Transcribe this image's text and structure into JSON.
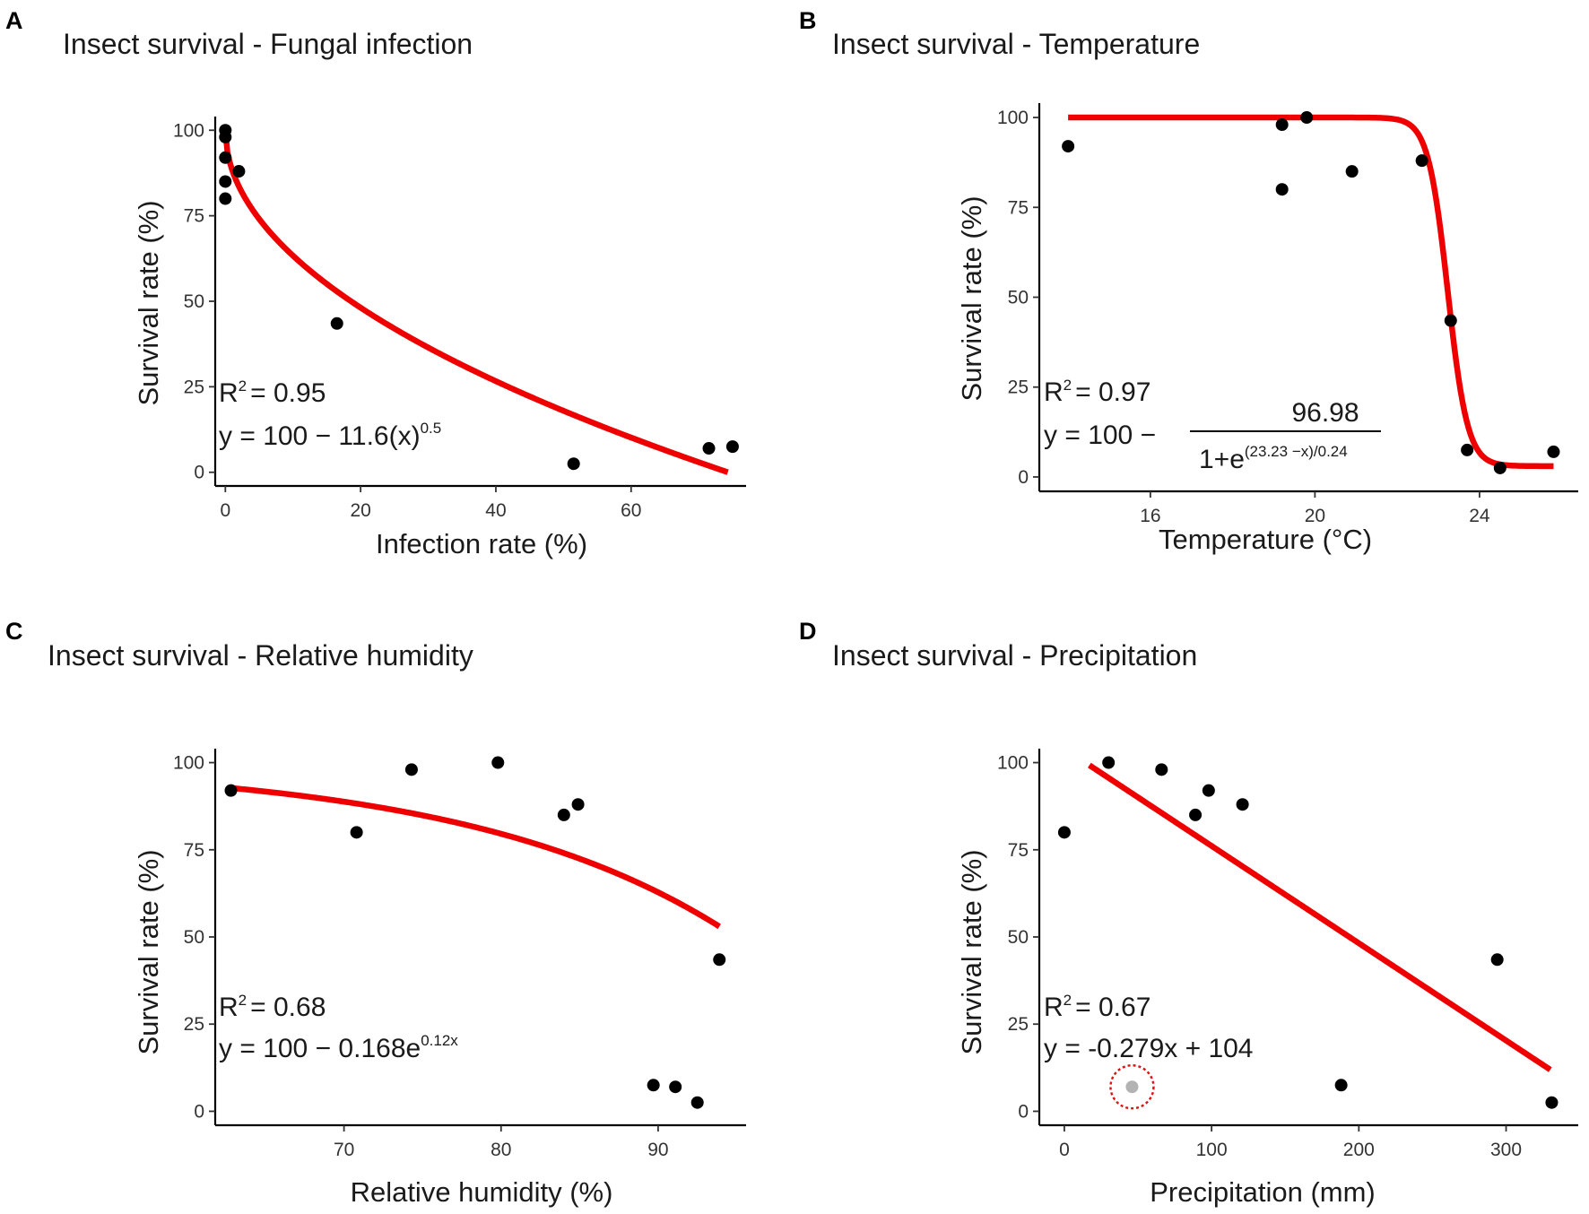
{
  "colors": {
    "fit": "#ee0000",
    "point": "#000000",
    "highlight_point": "#b3b3b3",
    "highlight_ring": "#dd1111"
  },
  "chart_data": [
    {
      "id": "A",
      "type": "scatter",
      "panel_label": "A",
      "title": "Insect survival - Fungal infection",
      "xlabel": "Infection rate (%)",
      "ylabel": "Survival rate (%)",
      "xlim": [
        -1.5,
        77
      ],
      "ylim": [
        -4,
        104
      ],
      "xticks": [
        0,
        20,
        40,
        60
      ],
      "yticks": [
        0,
        25,
        50,
        75,
        100
      ],
      "points": [
        [
          0,
          100
        ],
        [
          0,
          98
        ],
        [
          0,
          92
        ],
        [
          0,
          85
        ],
        [
          0,
          80
        ],
        [
          2,
          88
        ],
        [
          16.5,
          43.5
        ],
        [
          51.5,
          2.5
        ],
        [
          71.5,
          7
        ],
        [
          75,
          7.5
        ]
      ],
      "fit": {
        "model": "power",
        "a": 100,
        "b": 11.6,
        "p": 0.5,
        "xrange": [
          0,
          74.3
        ]
      },
      "annotation": {
        "r2_prefix": "R",
        "r2_exp": "2",
        "r2_value": "= 0.95",
        "eq_main": "y = 100 − 11.6(x)",
        "eq_sup": "0.5"
      }
    },
    {
      "id": "B",
      "type": "scatter",
      "panel_label": "B",
      "title": "Insect survival - Temperature",
      "xlabel": "Temperature (°C)",
      "ylabel": "Survival rate (%)",
      "xlim": [
        13.3,
        26.4
      ],
      "ylim": [
        -4,
        104
      ],
      "xticks": [
        16,
        20,
        24
      ],
      "yticks": [
        0,
        25,
        50,
        75,
        100
      ],
      "points": [
        [
          14.0,
          92
        ],
        [
          19.2,
          98
        ],
        [
          19.2,
          80
        ],
        [
          19.8,
          100
        ],
        [
          20.9,
          85
        ],
        [
          22.6,
          88
        ],
        [
          23.3,
          43.5
        ],
        [
          23.7,
          7.5
        ],
        [
          24.5,
          2.5
        ],
        [
          25.8,
          7
        ]
      ],
      "fit": {
        "model": "logistic",
        "a": 100,
        "b": 96.98,
        "c": 23.23,
        "d": 0.24,
        "xrange": [
          14.0,
          25.8
        ]
      },
      "annotation": {
        "r2_prefix": "R",
        "r2_exp": "2",
        "r2_value": "= 0.97",
        "eq_main": "y = 100 −",
        "frac_num": "96.98",
        "frac_den_base": "1+e",
        "frac_den_sup": "(23.23 −x)/0.24"
      }
    },
    {
      "id": "C",
      "type": "scatter",
      "panel_label": "C",
      "title": "Insect survival - Relative humidity",
      "xlabel": "Relative humidity (%)",
      "ylabel": "Survival rate (%)",
      "xlim": [
        61.8,
        95.6
      ],
      "ylim": [
        -4,
        104
      ],
      "xticks": [
        70,
        80,
        90
      ],
      "yticks": [
        0,
        25,
        50,
        75,
        100
      ],
      "points": [
        [
          62.8,
          92
        ],
        [
          70.8,
          80
        ],
        [
          74.3,
          98
        ],
        [
          79.8,
          100
        ],
        [
          84.0,
          85
        ],
        [
          84.9,
          88
        ],
        [
          89.7,
          7.5
        ],
        [
          91.1,
          7
        ],
        [
          92.5,
          2.5
        ],
        [
          93.9,
          43.5
        ]
      ],
      "fit": {
        "model": "exponential",
        "a": 100,
        "b": 0.168,
        "k": 0.12,
        "xscale": 0.5,
        "xrange": [
          62.8,
          93.9
        ]
      },
      "annotation": {
        "r2_prefix": "R",
        "r2_exp": "2",
        "r2_value": "= 0.68",
        "eq_main": "y = 100 − 0.168e",
        "eq_sup": "0.12x"
      }
    },
    {
      "id": "D",
      "type": "scatter",
      "panel_label": "D",
      "title": "Insect survival - Precipitation",
      "xlabel": "Precipitation (mm)",
      "ylabel": "Survival rate (%)",
      "xlim": [
        -17,
        349
      ],
      "ylim": [
        -4,
        104
      ],
      "xticks": [
        0,
        100,
        200,
        300
      ],
      "yticks": [
        0,
        25,
        50,
        75,
        100
      ],
      "points": [
        [
          0,
          80
        ],
        [
          30,
          100
        ],
        [
          66,
          98
        ],
        [
          89,
          85
        ],
        [
          98,
          92
        ],
        [
          121,
          88
        ],
        [
          188,
          7.5
        ],
        [
          294,
          43.5
        ],
        [
          331,
          2.5
        ]
      ],
      "highlight_points": [
        [
          46,
          7
        ]
      ],
      "fit": {
        "model": "linear",
        "slope": -0.279,
        "intercept": 104,
        "xrange": [
          17,
          330
        ]
      },
      "annotation": {
        "r2_prefix": "R",
        "r2_exp": "2",
        "r2_value": "= 0.67",
        "eq_main": "y = -0.279x + 104"
      }
    }
  ]
}
